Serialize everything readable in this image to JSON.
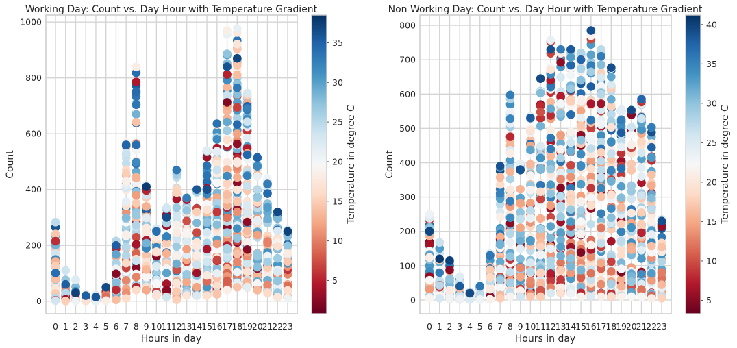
{
  "chart_data": [
    {
      "type": "scatter",
      "title": "Working Day: Count vs. Day Hour with Temperature Gradient",
      "xlabel": "Hours in day",
      "ylabel": "Count",
      "colorbar_label": "Temperature in degree C",
      "colormap": "RdBu",
      "x_ticks": [
        "0",
        "1",
        "2",
        "3",
        "4",
        "5",
        "6",
        "7",
        "8",
        "9",
        "10",
        "11",
        "12",
        "13",
        "14",
        "15",
        "16",
        "17",
        "18",
        "19",
        "20",
        "21",
        "22",
        "23"
      ],
      "y_ticks": [
        "0",
        "200",
        "400",
        "600",
        "800",
        "1000"
      ],
      "colorbar_ticks": [
        "5",
        "10",
        "15",
        "20",
        "25",
        "30",
        "35"
      ],
      "ylim": [
        -45,
        1025
      ],
      "color_range": [
        0.8,
        38.5
      ],
      "grid": true,
      "hour_stats": [
        {
          "hour": 0,
          "min": 2,
          "max": 283,
          "high_temp_point": 101
        },
        {
          "hour": 1,
          "min": 1,
          "max": 110,
          "high_temp_point": 60
        },
        {
          "hour": 2,
          "min": 1,
          "max": 77,
          "high_temp_point": 30
        },
        {
          "hour": 3,
          "min": 1,
          "max": 25,
          "high_temp_point": 20
        },
        {
          "hour": 4,
          "min": 1,
          "max": 22,
          "high_temp_point": 15
        },
        {
          "hour": 5,
          "min": 2,
          "max": 60,
          "high_temp_point": 50
        },
        {
          "hour": 6,
          "min": 5,
          "max": 216,
          "high_temp_point": 200
        },
        {
          "hour": 7,
          "min": 10,
          "max": 570,
          "high_temp_point": 560
        },
        {
          "hour": 8,
          "min": 40,
          "max": 839,
          "high_temp_point": 560
        },
        {
          "hour": 9,
          "min": 40,
          "max": 415,
          "high_temp_point": 410
        },
        {
          "hour": 10,
          "min": 20,
          "max": 260,
          "high_temp_point": 250
        },
        {
          "hour": 11,
          "min": 15,
          "max": 335,
          "high_temp_point": 300
        },
        {
          "hour": 12,
          "min": 5,
          "max": 470,
          "high_temp_point": 470
        },
        {
          "hour": 13,
          "min": 20,
          "max": 370,
          "high_temp_point": 370
        },
        {
          "hour": 14,
          "min": 20,
          "max": 400,
          "high_temp_point": 400
        },
        {
          "hour": 15,
          "min": 20,
          "max": 540,
          "high_temp_point": 400
        },
        {
          "hour": 16,
          "min": 25,
          "max": 636,
          "high_temp_point": 636
        },
        {
          "hour": 17,
          "min": 40,
          "max": 970,
          "high_temp_point": 840
        },
        {
          "hour": 18,
          "min": 50,
          "max": 977,
          "high_temp_point": 870
        },
        {
          "hour": 19,
          "min": 50,
          "max": 745,
          "high_temp_point": 690
        },
        {
          "hour": 20,
          "min": 40,
          "max": 515,
          "high_temp_point": 515
        },
        {
          "hour": 21,
          "min": 30,
          "max": 440,
          "high_temp_point": 420
        },
        {
          "hour": 22,
          "min": 15,
          "max": 320,
          "high_temp_point": 320
        },
        {
          "hour": 23,
          "min": 10,
          "max": 255,
          "high_temp_point": 250
        }
      ]
    },
    {
      "type": "scatter",
      "title": "Non Working Day: Count vs. Day Hour with Temperature Gradient",
      "xlabel": "Hours in day",
      "ylabel": "Count",
      "colorbar_label": "Temperature in degree C",
      "colormap": "RdBu",
      "x_ticks": [
        "0",
        "1",
        "2",
        "3",
        "4",
        "5",
        "6",
        "7",
        "8",
        "9",
        "10",
        "11",
        "12",
        "13",
        "14",
        "15",
        "16",
        "17",
        "18",
        "19",
        "20",
        "21",
        "22",
        "23"
      ],
      "y_ticks": [
        "0",
        "100",
        "200",
        "300",
        "400",
        "500",
        "600",
        "700",
        "800"
      ],
      "colorbar_ticks": [
        "5",
        "10",
        "15",
        "20",
        "25",
        "30",
        "35",
        "40"
      ],
      "ylim": [
        -40,
        830
      ],
      "color_range": [
        3.3,
        41.2
      ],
      "grid": true,
      "hour_stats": [
        {
          "hour": 0,
          "min": 5,
          "max": 250,
          "high_temp_point": 200
        },
        {
          "hour": 1,
          "min": 5,
          "max": 168,
          "high_temp_point": 120
        },
        {
          "hour": 2,
          "min": 3,
          "max": 118,
          "high_temp_point": 115
        },
        {
          "hour": 3,
          "min": 2,
          "max": 68,
          "high_temp_point": 40
        },
        {
          "hour": 4,
          "min": 1,
          "max": 25,
          "high_temp_point": 20
        },
        {
          "hour": 5,
          "min": 1,
          "max": 45,
          "high_temp_point": 40
        },
        {
          "hour": 6,
          "min": 2,
          "max": 135,
          "high_temp_point": 130
        },
        {
          "hour": 7,
          "min": 5,
          "max": 390,
          "high_temp_point": 390
        },
        {
          "hour": 8,
          "min": 10,
          "max": 597,
          "high_temp_point": 597
        },
        {
          "hour": 9,
          "min": 10,
          "max": 397,
          "high_temp_point": 380
        },
        {
          "hour": 10,
          "min": 10,
          "max": 535,
          "high_temp_point": 530
        },
        {
          "hour": 11,
          "min": 10,
          "max": 645,
          "high_temp_point": 645
        },
        {
          "hour": 12,
          "min": 20,
          "max": 757,
          "high_temp_point": 730
        },
        {
          "hour": 13,
          "min": 20,
          "max": 730,
          "high_temp_point": 730
        },
        {
          "hour": 14,
          "min": 20,
          "max": 730,
          "high_temp_point": 730
        },
        {
          "hour": 15,
          "min": 10,
          "max": 720,
          "high_temp_point": 700
        },
        {
          "hour": 16,
          "min": 10,
          "max": 785,
          "high_temp_point": 785
        },
        {
          "hour": 17,
          "min": 10,
          "max": 730,
          "high_temp_point": 710
        },
        {
          "hour": 18,
          "min": 10,
          "max": 677,
          "high_temp_point": 677
        },
        {
          "hour": 19,
          "min": 10,
          "max": 555,
          "high_temp_point": 525
        },
        {
          "hour": 20,
          "min": 10,
          "max": 553,
          "high_temp_point": 553
        },
        {
          "hour": 21,
          "min": 10,
          "max": 585,
          "high_temp_point": 585
        },
        {
          "hour": 22,
          "min": 5,
          "max": 503,
          "high_temp_point": 503
        },
        {
          "hour": 23,
          "min": 5,
          "max": 235,
          "high_temp_point": 230
        }
      ]
    }
  ]
}
